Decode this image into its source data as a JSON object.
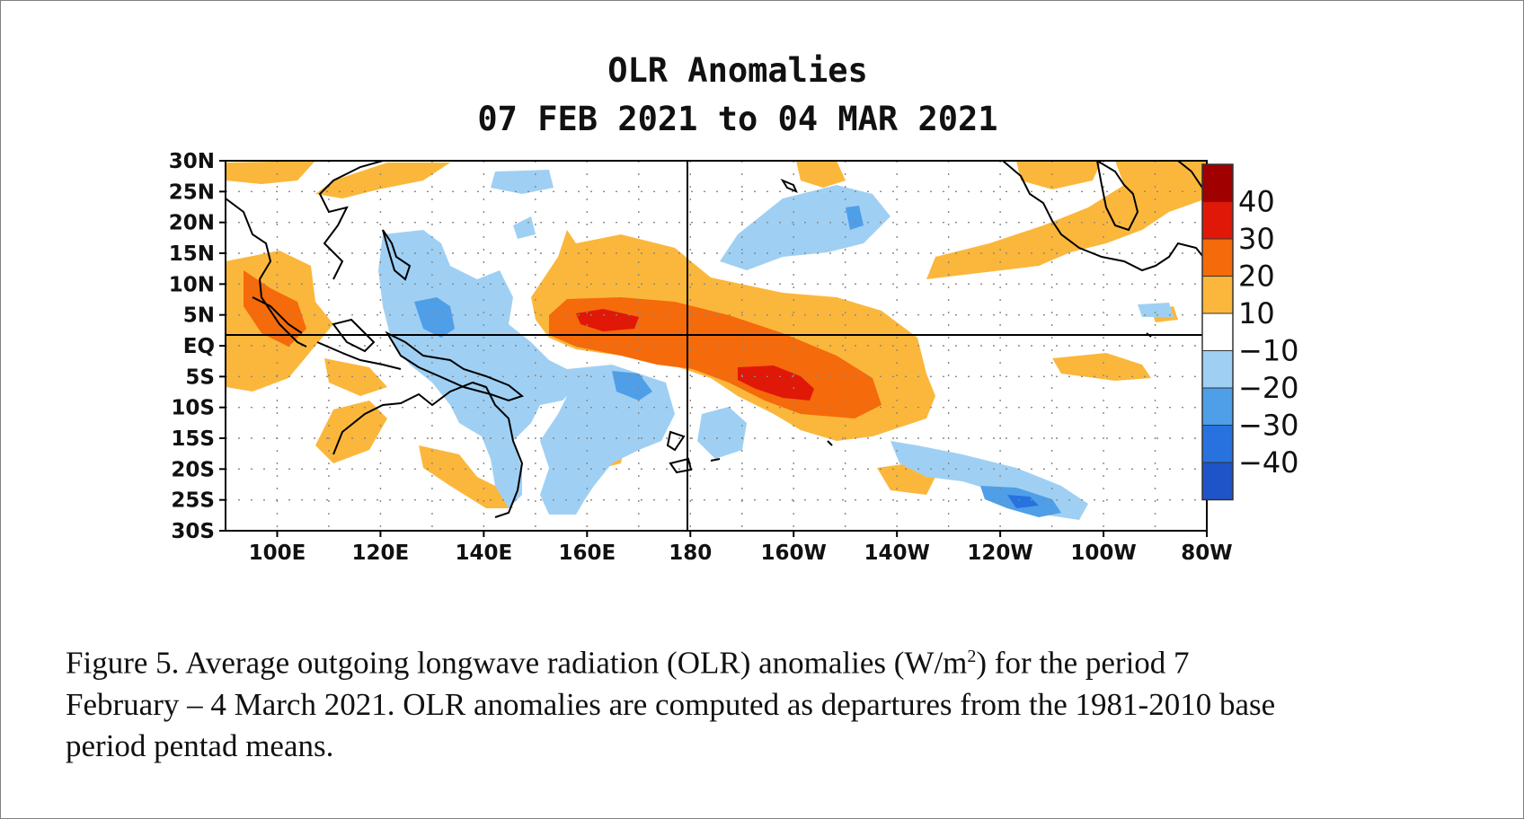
{
  "figure": {
    "title_line1": "OLR Anomalies",
    "title_line2": "07 FEB 2021 to 04 MAR 2021",
    "caption": {
      "line1_before_sup": "Figure  5. Average outgoing  longwave  radiation  (OLR) anomalies  (W/m",
      "sup": "2",
      "line1_after_sup": ")  for the period  7",
      "line2": "February – 4 March 2021.   OLR anomalies  are computed  as departures  from the 1981-2010  base",
      "line3": "period pentad means."
    }
  },
  "map": {
    "lat_labels": [
      "30N",
      "25N",
      "20N",
      "15N",
      "10N",
      "5N",
      "EQ",
      "5S",
      "10S",
      "15S",
      "20S",
      "25S",
      "30S"
    ],
    "lon_labels": [
      "100E",
      "120E",
      "140E",
      "160E",
      "180",
      "160W",
      "140W",
      "120W",
      "100W",
      "80W"
    ],
    "lat_range": [
      -30,
      30
    ],
    "lon_range_east": [
      90,
      280
    ],
    "grid": "dotted",
    "reference_lines": [
      "Equator",
      "180"
    ]
  },
  "legend": {
    "labels": [
      "40",
      "30",
      "20",
      "10",
      "−10",
      "−20",
      "−30",
      "−40"
    ],
    "colors": [
      "#a00000",
      "#e01808",
      "#f56a0a",
      "#fbb73c",
      "#ffffff",
      "#9fd0f3",
      "#4f9ee8",
      "#2772de",
      "#1f53c8"
    ],
    "units": "W/m2"
  },
  "colors": {
    "positive_10_20": "#fbb73c",
    "positive_20_30": "#f56a0a",
    "positive_30_40": "#e01808",
    "positive_40_plus": "#a00000",
    "negative_10_20": "#9fd0f3",
    "negative_20_30": "#4f9ee8",
    "negative_30_40": "#2772de"
  }
}
